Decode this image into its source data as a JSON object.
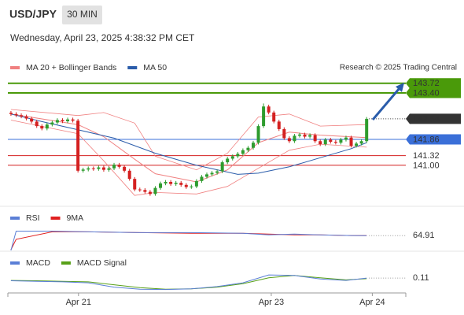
{
  "chart_data": {
    "type": "candlestick",
    "title": "USD/JPY",
    "interval": "30 MIN",
    "subtitle": "Wednesday, April 23, 2025 4:38:32 PM CET",
    "source": "Research © 2025 Trading Central",
    "x": [
      0,
      1,
      2,
      3,
      4,
      5,
      6,
      7,
      8,
      9,
      10,
      11,
      12,
      13,
      14,
      15,
      16,
      17,
      18,
      19,
      20,
      21,
      22,
      23,
      24,
      25,
      26,
      27,
      28,
      29,
      30,
      31,
      32,
      33,
      34,
      35,
      36,
      37,
      38,
      39,
      40,
      41,
      42,
      43,
      44,
      45,
      46,
      47,
      48,
      49,
      50,
      51,
      52,
      53,
      54,
      55,
      56,
      57,
      58,
      59,
      60,
      61,
      62,
      63,
      64,
      65,
      66,
      67,
      68,
      69
    ],
    "open": [
      142.74,
      142.7,
      142.66,
      142.62,
      142.55,
      142.45,
      142.3,
      142.22,
      142.35,
      142.42,
      142.5,
      142.46,
      142.52,
      142.48,
      140.82,
      140.86,
      140.9,
      140.88,
      140.93,
      140.85,
      140.9,
      141.02,
      140.95,
      140.82,
      140.55,
      140.2,
      140.18,
      140.12,
      140.05,
      140.25,
      140.4,
      140.45,
      140.38,
      140.42,
      140.35,
      140.28,
      140.3,
      140.48,
      140.62,
      140.7,
      140.75,
      140.8,
      141.1,
      141.22,
      141.3,
      141.38,
      141.5,
      141.58,
      141.75,
      142.3,
      142.95,
      142.75,
      142.45,
      142.2,
      141.9,
      141.8,
      141.98,
      142.02,
      141.95,
      142.0,
      141.8,
      141.7,
      141.85,
      141.78,
      141.75,
      141.85,
      141.92,
      141.65,
      141.72,
      141.8
    ],
    "high": [
      142.8,
      142.76,
      142.72,
      142.68,
      142.61,
      142.51,
      142.36,
      142.41,
      142.48,
      142.56,
      142.56,
      142.58,
      142.58,
      142.54,
      140.92,
      140.96,
      140.96,
      140.99,
      140.99,
      140.96,
      141.08,
      141.08,
      141.01,
      140.88,
      140.61,
      140.26,
      140.24,
      140.18,
      140.31,
      140.46,
      140.51,
      140.51,
      140.48,
      140.48,
      140.41,
      140.36,
      140.54,
      140.68,
      140.76,
      140.81,
      140.86,
      141.16,
      141.28,
      141.36,
      141.44,
      141.56,
      141.64,
      141.81,
      142.36,
      143.05,
      143.01,
      142.81,
      142.51,
      142.26,
      141.96,
      142.04,
      142.08,
      142.08,
      142.06,
      142.06,
      141.86,
      141.91,
      141.91,
      141.84,
      141.91,
      141.98,
      141.98,
      141.78,
      141.86,
      142.6
    ],
    "low": [
      142.64,
      142.6,
      142.56,
      142.49,
      142.39,
      142.24,
      142.16,
      142.16,
      142.29,
      142.36,
      142.4,
      142.4,
      142.42,
      140.76,
      140.76,
      140.8,
      140.82,
      140.82,
      140.79,
      140.79,
      140.84,
      140.89,
      140.76,
      140.49,
      140.14,
      140.12,
      140.06,
      139.99,
      139.99,
      140.19,
      140.34,
      140.32,
      140.32,
      140.29,
      140.22,
      140.22,
      140.24,
      140.42,
      140.56,
      140.64,
      140.69,
      140.74,
      141.04,
      141.16,
      141.24,
      141.32,
      141.44,
      141.52,
      141.69,
      142.24,
      142.69,
      142.39,
      142.14,
      141.84,
      141.74,
      141.74,
      141.92,
      141.89,
      141.89,
      141.74,
      141.64,
      141.64,
      141.72,
      141.69,
      141.69,
      141.79,
      141.59,
      141.59,
      141.66,
      141.74
    ],
    "close": [
      142.7,
      142.66,
      142.62,
      142.55,
      142.45,
      142.3,
      142.22,
      142.35,
      142.42,
      142.5,
      142.46,
      142.52,
      142.48,
      140.82,
      140.86,
      140.9,
      140.88,
      140.93,
      140.85,
      140.9,
      141.02,
      140.95,
      140.82,
      140.55,
      140.2,
      140.18,
      140.12,
      140.05,
      140.25,
      140.4,
      140.45,
      140.38,
      140.42,
      140.35,
      140.28,
      140.3,
      140.48,
      140.62,
      140.7,
      140.75,
      140.8,
      141.1,
      141.22,
      141.3,
      141.38,
      141.5,
      141.58,
      141.75,
      142.3,
      142.95,
      142.75,
      142.45,
      142.2,
      141.9,
      141.8,
      141.98,
      142.02,
      141.95,
      142.0,
      141.8,
      141.7,
      141.85,
      141.78,
      141.75,
      141.85,
      141.92,
      141.65,
      141.72,
      141.8,
      142.54
    ],
    "up_color": "#2e9c2e",
    "down_color": "#d42020",
    "xlim": [
      -0.6,
      76.6
    ],
    "xticks": [
      {
        "value": 13.1,
        "label": "Apr 21"
      },
      {
        "value": 50.5,
        "label": "Apr 23"
      },
      {
        "value": 70.1,
        "label": "Apr 24"
      }
    ],
    "ylim": [
      139.64,
      144.0
    ],
    "overlays": [
      {
        "name": "MA 20 + Bollinger Bands",
        "color": "#f08080",
        "x": [
          0,
          13,
          18,
          24,
          28,
          36,
          42,
          48,
          54,
          60,
          69
        ],
        "values": [
          142.7,
          142.35,
          141.95,
          141.2,
          140.72,
          140.45,
          140.85,
          141.75,
          142.1,
          142.0,
          141.92
        ],
        "upper": [
          142.85,
          142.65,
          142.75,
          142.4,
          141.3,
          140.85,
          141.4,
          142.6,
          142.7,
          142.3,
          142.35
        ],
        "lower": [
          142.5,
          142.05,
          141.15,
          140.0,
          140.1,
          140.05,
          140.3,
          140.9,
          141.5,
          141.7,
          141.6
        ]
      },
      {
        "name": "MA 50",
        "color": "#2a5caa",
        "x": [
          0,
          6,
          13,
          20,
          28,
          36,
          44,
          48,
          54,
          60,
          66,
          69
        ],
        "values": [
          142.7,
          142.45,
          142.18,
          141.9,
          141.4,
          141.0,
          140.7,
          140.74,
          140.95,
          141.25,
          141.55,
          141.75
        ]
      }
    ],
    "levels": [
      {
        "value": 143.72,
        "color": "#4a9a0a",
        "line": "full",
        "box": true
      },
      {
        "value": 143.4,
        "label": "143.40",
        "color": "#4a9a0a",
        "line": "full",
        "box": true
      },
      {
        "value": 142.54,
        "color": "#333333",
        "line": "dotted",
        "box": true
      },
      {
        "value": 141.86,
        "color": "#3a6fd8",
        "line": "full",
        "box": true
      },
      {
        "value": 141.32,
        "color": "#d42020",
        "line": "full",
        "box": false
      },
      {
        "value": 141,
        "label": "141.00",
        "color": "#d42020",
        "line": "full",
        "box": false
      }
    ],
    "rsi": {
      "ylim": [
        45,
        80
      ],
      "series": [
        {
          "name": "RSI",
          "color": "#5b7fd6",
          "x": [
            0,
            1,
            8,
            15,
            25,
            35,
            45,
            50,
            55,
            60,
            66,
            69
          ],
          "values": [
            45,
            71,
            71,
            70,
            69,
            69,
            68,
            66,
            67,
            66,
            65,
            64.91
          ]
        },
        {
          "name": "9MA",
          "color": "#e02020",
          "x": [
            0,
            1,
            8,
            15,
            25,
            35,
            45,
            50,
            55,
            60,
            66,
            69
          ],
          "values": [
            46,
            60,
            70,
            70,
            69,
            68,
            68,
            67,
            66,
            66,
            65,
            65
          ]
        }
      ]
    },
    "macd": {
      "ylim": [
        -0.4,
        0.6
      ],
      "series": [
        {
          "name": "MACD",
          "color": "#5b7fd6",
          "x": [
            0,
            5,
            10,
            15,
            20,
            25,
            30,
            35,
            40,
            45,
            50,
            55,
            60,
            65,
            69
          ],
          "values": [
            0.02,
            0.0,
            -0.02,
            -0.05,
            -0.2,
            -0.27,
            -0.28,
            -0.26,
            -0.18,
            -0.05,
            0.22,
            0.2,
            0.08,
            0.03,
            0.11
          ]
        },
        {
          "name": "MACD Signal",
          "color": "#58a018",
          "x": [
            0,
            5,
            10,
            15,
            20,
            25,
            30,
            35,
            40,
            45,
            50,
            55,
            60,
            65,
            69
          ],
          "values": [
            0.03,
            0.02,
            0.0,
            -0.02,
            -0.12,
            -0.22,
            -0.27,
            -0.26,
            -0.2,
            -0.08,
            0.12,
            0.2,
            0.12,
            0.05,
            0.09
          ]
        }
      ]
    }
  }
}
